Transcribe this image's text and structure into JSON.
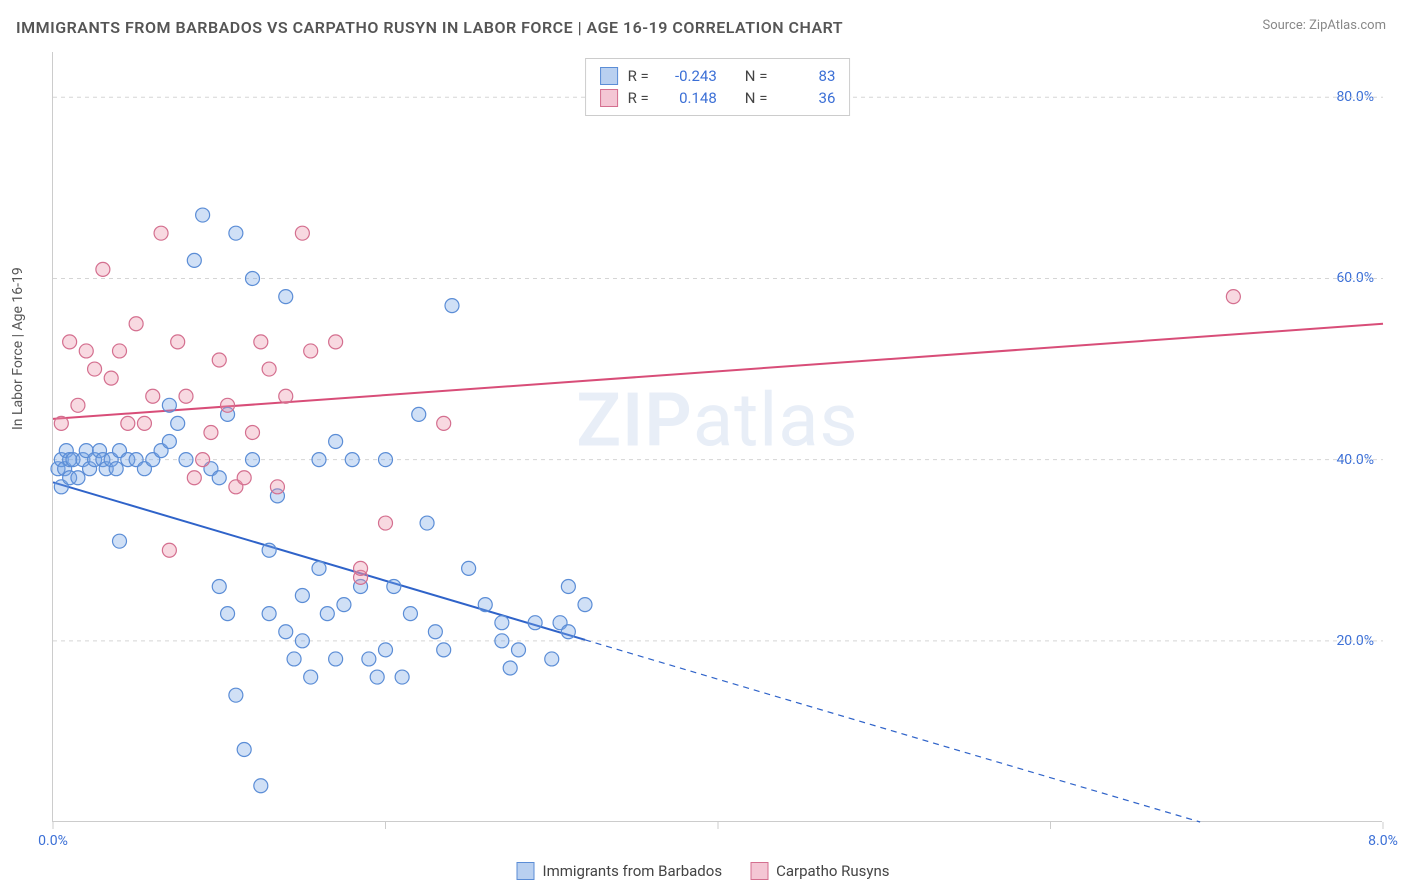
{
  "title": "IMMIGRANTS FROM BARBADOS VS CARPATHO RUSYN IN LABOR FORCE | AGE 16-19 CORRELATION CHART",
  "source": "Source: ZipAtlas.com",
  "watermark_zip": "ZIP",
  "watermark_atlas": "atlas",
  "chart": {
    "type": "scatter-with-regression",
    "y_axis_label": "In Labor Force | Age 16-19",
    "xlim": [
      0.0,
      8.0
    ],
    "ylim": [
      0.0,
      85.0
    ],
    "x_ticks": [
      0.0,
      2.0,
      4.0,
      6.0,
      8.0
    ],
    "x_tick_labels": [
      "0.0%",
      "",
      "",
      "",
      "8.0%"
    ],
    "y_grid": [
      20.0,
      40.0,
      60.0,
      80.0
    ],
    "y_tick_labels": [
      "20.0%",
      "40.0%",
      "60.0%",
      "80.0%"
    ],
    "grid_color": "#d5d5d5",
    "background_color": "#ffffff",
    "axis_color": "#cccccc",
    "tick_label_color": "#3b6fd6",
    "series": [
      {
        "name": "Immigrants from Barbados",
        "color_fill": "rgba(120,165,230,0.35)",
        "color_stroke": "#5b8dd6",
        "swatch_fill": "#b9d0f0",
        "swatch_border": "#5b8dd6",
        "marker_radius": 7,
        "R": "-0.243",
        "N": "83",
        "regression": {
          "x1": 0.0,
          "y1": 37.5,
          "x2": 6.9,
          "y2": 0.0,
          "solid_to_x": 3.2,
          "stroke": "#2f63c9",
          "width": 2
        },
        "points": [
          [
            0.03,
            39
          ],
          [
            0.05,
            40
          ],
          [
            0.07,
            39
          ],
          [
            0.08,
            41
          ],
          [
            0.05,
            37
          ],
          [
            0.1,
            40
          ],
          [
            0.12,
            40
          ],
          [
            0.1,
            38
          ],
          [
            0.15,
            38
          ],
          [
            0.18,
            40
          ],
          [
            0.2,
            41
          ],
          [
            0.22,
            39
          ],
          [
            0.25,
            40
          ],
          [
            0.28,
            41
          ],
          [
            0.3,
            40
          ],
          [
            0.32,
            39
          ],
          [
            0.35,
            40
          ],
          [
            0.38,
            39
          ],
          [
            0.4,
            41
          ],
          [
            0.45,
            40
          ],
          [
            0.5,
            40
          ],
          [
            0.55,
            39
          ],
          [
            0.6,
            40
          ],
          [
            0.65,
            41
          ],
          [
            0.7,
            46
          ],
          [
            0.7,
            42
          ],
          [
            0.75,
            44
          ],
          [
            0.8,
            40
          ],
          [
            0.85,
            62
          ],
          [
            0.9,
            67
          ],
          [
            0.95,
            39
          ],
          [
            1.0,
            26
          ],
          [
            1.0,
            38
          ],
          [
            1.05,
            23
          ],
          [
            1.05,
            45
          ],
          [
            1.1,
            65
          ],
          [
            1.1,
            14
          ],
          [
            1.15,
            8
          ],
          [
            1.2,
            40
          ],
          [
            1.2,
            60
          ],
          [
            1.25,
            4
          ],
          [
            1.3,
            30
          ],
          [
            1.3,
            23
          ],
          [
            1.35,
            36
          ],
          [
            1.4,
            21
          ],
          [
            1.4,
            58
          ],
          [
            1.45,
            18
          ],
          [
            1.5,
            25
          ],
          [
            1.5,
            20
          ],
          [
            1.55,
            16
          ],
          [
            1.6,
            40
          ],
          [
            1.6,
            28
          ],
          [
            1.65,
            23
          ],
          [
            1.7,
            42
          ],
          [
            1.7,
            18
          ],
          [
            1.75,
            24
          ],
          [
            1.8,
            40
          ],
          [
            1.85,
            26
          ],
          [
            1.9,
            18
          ],
          [
            1.95,
            16
          ],
          [
            2.0,
            19
          ],
          [
            2.0,
            40
          ],
          [
            2.05,
            26
          ],
          [
            2.1,
            16
          ],
          [
            2.15,
            23
          ],
          [
            2.2,
            45
          ],
          [
            2.25,
            33
          ],
          [
            2.3,
            21
          ],
          [
            2.35,
            19
          ],
          [
            2.4,
            57
          ],
          [
            2.5,
            28
          ],
          [
            2.6,
            24
          ],
          [
            2.7,
            22
          ],
          [
            2.7,
            20
          ],
          [
            2.75,
            17
          ],
          [
            2.8,
            19
          ],
          [
            2.9,
            22
          ],
          [
            3.0,
            18
          ],
          [
            3.05,
            22
          ],
          [
            3.1,
            26
          ],
          [
            3.1,
            21
          ],
          [
            3.2,
            24
          ],
          [
            0.4,
            31
          ]
        ]
      },
      {
        "name": "Carpatho Rusyns",
        "color_fill": "rgba(235,145,170,0.35)",
        "color_stroke": "#d46f8f",
        "swatch_fill": "#f4c6d4",
        "swatch_border": "#d46f8f",
        "marker_radius": 7,
        "R": "0.148",
        "N": "36",
        "regression": {
          "x1": 0.0,
          "y1": 44.5,
          "x2": 8.0,
          "y2": 55.0,
          "solid_to_x": 8.0,
          "stroke": "#d84d78",
          "width": 2
        },
        "points": [
          [
            0.05,
            44
          ],
          [
            0.1,
            53
          ],
          [
            0.15,
            46
          ],
          [
            0.2,
            52
          ],
          [
            0.25,
            50
          ],
          [
            0.3,
            61
          ],
          [
            0.35,
            49
          ],
          [
            0.4,
            52
          ],
          [
            0.45,
            44
          ],
          [
            0.5,
            55
          ],
          [
            0.55,
            44
          ],
          [
            0.6,
            47
          ],
          [
            0.65,
            65
          ],
          [
            0.7,
            30
          ],
          [
            0.75,
            53
          ],
          [
            0.8,
            47
          ],
          [
            0.85,
            38
          ],
          [
            0.9,
            40
          ],
          [
            0.95,
            43
          ],
          [
            1.0,
            51
          ],
          [
            1.05,
            46
          ],
          [
            1.1,
            37
          ],
          [
            1.15,
            38
          ],
          [
            1.2,
            43
          ],
          [
            1.25,
            53
          ],
          [
            1.3,
            50
          ],
          [
            1.35,
            37
          ],
          [
            1.4,
            47
          ],
          [
            1.5,
            65
          ],
          [
            1.55,
            52
          ],
          [
            1.7,
            53
          ],
          [
            1.85,
            27
          ],
          [
            1.85,
            28
          ],
          [
            2.0,
            33
          ],
          [
            2.35,
            44
          ],
          [
            7.1,
            58
          ]
        ]
      }
    ],
    "legend_top_labels": {
      "R": "R =",
      "N": "N ="
    },
    "bottom_legend": [
      "Immigrants from Barbados",
      "Carpatho Rusyns"
    ]
  }
}
